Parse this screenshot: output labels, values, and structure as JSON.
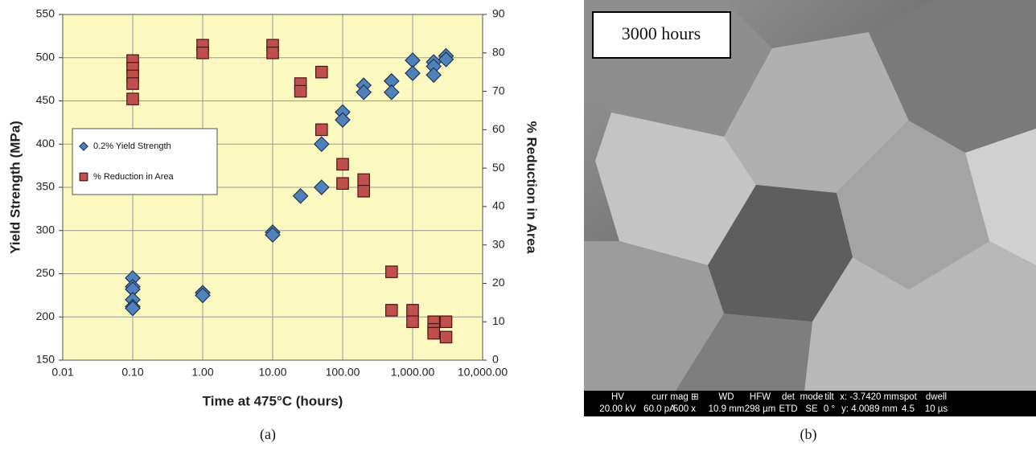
{
  "chart_data": {
    "type": "scatter",
    "xlabel": "Time at 475°C (hours)",
    "ylabel": "Yield Strength (MPa)",
    "y2label": "% Reduction in Area",
    "xscale": "log",
    "xlim": [
      0.01,
      10000
    ],
    "xticks": [
      {
        "value": 0.01,
        "label": "0.01"
      },
      {
        "value": 0.1,
        "label": "0.10"
      },
      {
        "value": 1,
        "label": "1.00"
      },
      {
        "value": 10,
        "label": "10.00"
      },
      {
        "value": 100,
        "label": "100.00"
      },
      {
        "value": 1000,
        "label": "1,000.00"
      },
      {
        "value": 10000,
        "label": "10,000.00"
      }
    ],
    "ylim": [
      150,
      550
    ],
    "yticks": [
      150,
      200,
      250,
      300,
      350,
      400,
      450,
      500,
      550
    ],
    "y2lim": [
      0,
      90
    ],
    "y2ticks": [
      0,
      10,
      20,
      30,
      40,
      50,
      60,
      70,
      80,
      90
    ],
    "grid": true,
    "legend": "center left",
    "background": "#fbf8c0",
    "series": [
      {
        "name": "0.2% Yield Strength",
        "color": "#4f81bd",
        "marker": "diamond",
        "x": [
          0.1,
          0.1,
          0.1,
          0.1,
          0.1,
          0.1,
          1,
          1,
          10,
          10,
          25,
          50,
          50,
          100,
          100,
          200,
          200,
          500,
          500,
          1000,
          1000,
          2000,
          2000,
          2000,
          3000,
          3000
        ],
        "values": [
          245,
          235,
          232,
          220,
          212,
          210,
          228,
          225,
          298,
          295,
          340,
          400,
          350,
          437,
          428,
          468,
          460,
          473,
          460,
          497,
          482,
          495,
          490,
          480,
          502,
          498
        ]
      },
      {
        "name": "% Reduction in Area",
        "color": "#c0504d",
        "marker": "square",
        "axis": "y2",
        "x": [
          0.1,
          0.1,
          0.1,
          0.1,
          0.1,
          1,
          1,
          10,
          10,
          25,
          25,
          50,
          50,
          100,
          100,
          200,
          200,
          500,
          500,
          1000,
          1000,
          2000,
          2000,
          2000,
          3000,
          3000
        ],
        "values": [
          78,
          76,
          74,
          72,
          68,
          82,
          80,
          82,
          80,
          72,
          70,
          75,
          60,
          51,
          46,
          47,
          44,
          23,
          13,
          13,
          10,
          10,
          8,
          7,
          10,
          6
        ]
      }
    ]
  },
  "image_panel": {
    "label": "3000 hours",
    "info_bar": {
      "headers": [
        "HV",
        "curr",
        "mag ⊞",
        "WD",
        "HFW",
        "det",
        "mode",
        "tilt",
        "x: -3.7420 mm",
        "spot",
        "dwell"
      ],
      "values": [
        "20.00 kV",
        "60.0 pA",
        "500 x",
        "10.9 mm",
        "298 µm",
        "ETD",
        "SE",
        "0 °",
        "y: 4.0089 mm",
        "4.5",
        "10 µs"
      ]
    }
  },
  "captions": [
    "(a)",
    "(b)"
  ]
}
